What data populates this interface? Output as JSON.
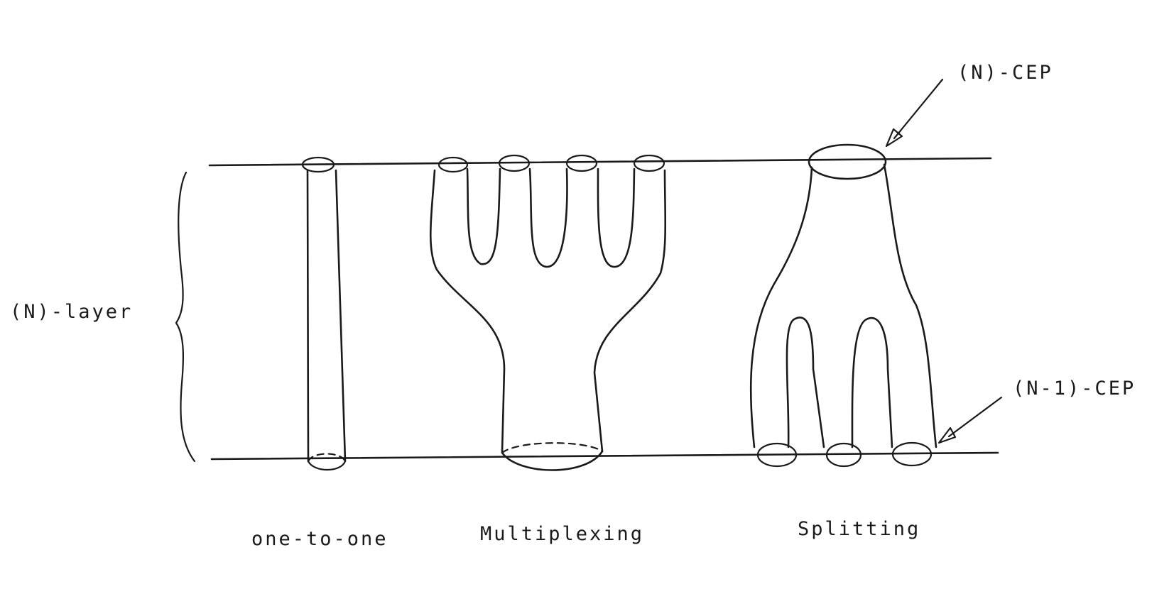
{
  "labels": {
    "layer": "(N)-layer",
    "n_cep": "(N)-CEP",
    "n1_cep": "(N-1)-CEP",
    "one_to_one": "one-to-one",
    "multiplexing": "Multiplexing",
    "splitting": "Splitting"
  },
  "colors": {
    "ink": "#1a1a1a",
    "background": "#ffffff"
  }
}
